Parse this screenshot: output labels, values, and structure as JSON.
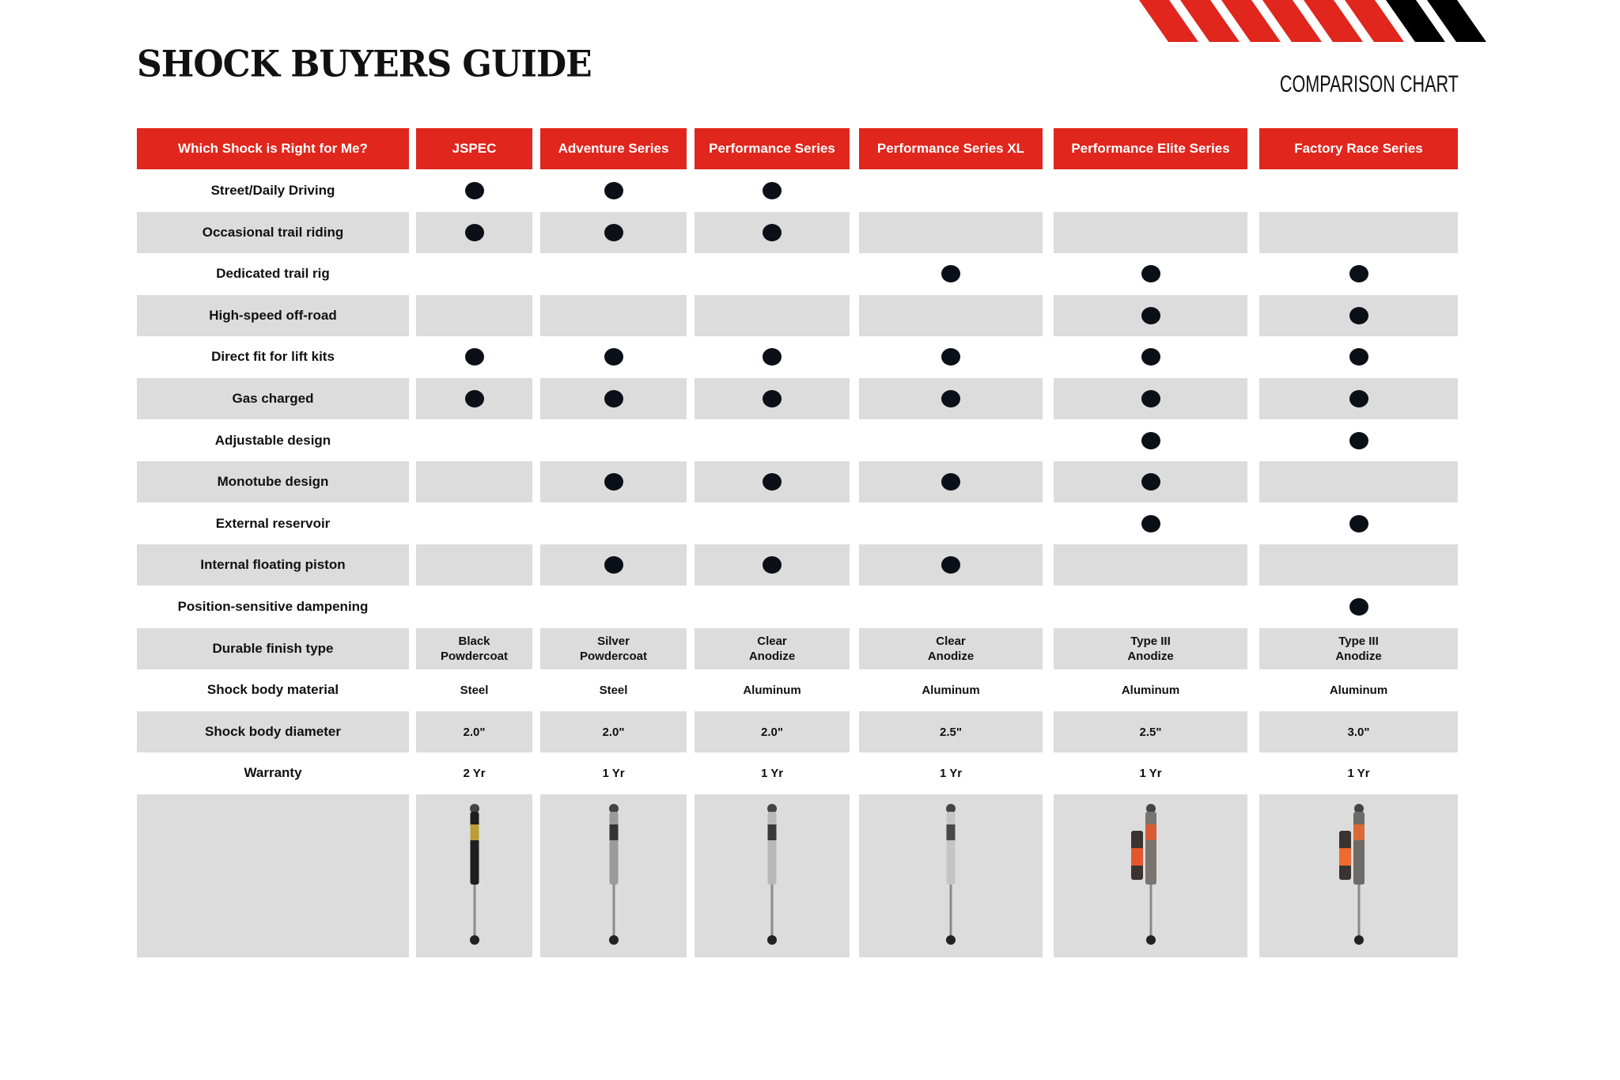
{
  "header": {
    "title": "SHOCK BUYERS GUIDE",
    "subtitle": "COMPARISON CHART",
    "accent_color": "#e0261d",
    "stripe_colors": [
      "#e0261d",
      "#e0261d",
      "#e0261d",
      "#e0261d",
      "#e0261d",
      "#e0261d",
      "#000000",
      "#000000"
    ]
  },
  "table": {
    "corner_label": "Which Shock is Right for Me?",
    "products": [
      "JSPEC",
      "Adventure Series",
      "Performance Series",
      "Performance Series XL",
      "Performance Elite Series",
      "Factory Race Series"
    ],
    "rows": [
      {
        "label": "Street/Daily Driving",
        "type": "dots",
        "values": [
          true,
          true,
          true,
          false,
          false,
          false
        ]
      },
      {
        "label": "Occasional trail riding",
        "type": "dots",
        "values": [
          true,
          true,
          true,
          false,
          false,
          false
        ]
      },
      {
        "label": "Dedicated trail rig",
        "type": "dots",
        "values": [
          false,
          false,
          false,
          true,
          true,
          true
        ]
      },
      {
        "label": "High-speed off-road",
        "type": "dots",
        "values": [
          false,
          false,
          false,
          false,
          true,
          true
        ]
      },
      {
        "label": "Direct fit for lift kits",
        "type": "dots",
        "values": [
          true,
          true,
          true,
          true,
          true,
          true
        ]
      },
      {
        "label": "Gas charged",
        "type": "dots",
        "values": [
          true,
          true,
          true,
          true,
          true,
          true
        ]
      },
      {
        "label": "Adjustable design",
        "type": "dots",
        "values": [
          false,
          false,
          false,
          false,
          true,
          true
        ]
      },
      {
        "label": "Monotube design",
        "type": "dots",
        "values": [
          false,
          true,
          true,
          true,
          true,
          false
        ]
      },
      {
        "label": "External reservoir",
        "type": "dots",
        "values": [
          false,
          false,
          false,
          false,
          true,
          true
        ]
      },
      {
        "label": "Internal floating piston",
        "type": "dots",
        "values": [
          false,
          true,
          true,
          true,
          false,
          false
        ]
      },
      {
        "label": "Position-sensitive dampening",
        "type": "dots",
        "values": [
          false,
          false,
          false,
          false,
          false,
          true
        ]
      },
      {
        "label": "Durable finish type",
        "type": "text",
        "values": [
          "Black\nPowdercoat",
          "Silver\nPowdercoat",
          "Clear\nAnodize",
          "Clear\nAnodize",
          "Type III\nAnodize",
          "Type III\nAnodize"
        ]
      },
      {
        "label": "Shock body material",
        "type": "text",
        "values": [
          "Steel",
          "Steel",
          "Aluminum",
          "Aluminum",
          "Aluminum",
          "Aluminum"
        ]
      },
      {
        "label": "Shock body diameter",
        "type": "text",
        "values": [
          "2.0\"",
          "2.0\"",
          "2.0\"",
          "2.5\"",
          "2.5\"",
          "3.0\""
        ]
      },
      {
        "label": "Warranty",
        "type": "text",
        "values": [
          "2 Yr",
          "1 Yr",
          "1 Yr",
          "1 Yr",
          "1 Yr",
          "1 Yr"
        ]
      }
    ],
    "shock_images": [
      {
        "product": "JSPEC",
        "body_color": "#1e1e1e",
        "accent_color": "#d8b43a",
        "reservoir": false
      },
      {
        "product": "Adventure Series",
        "body_color": "#9a9a9a",
        "accent_color": "#222222",
        "reservoir": false
      },
      {
        "product": "Performance Series",
        "body_color": "#b8b8b8",
        "accent_color": "#222222",
        "reservoir": false
      },
      {
        "product": "Performance Series XL",
        "body_color": "#c4c4c4",
        "accent_color": "#333333",
        "reservoir": false
      },
      {
        "product": "Performance Elite Series",
        "body_color": "#7a7470",
        "accent_color": "#e5572a",
        "reservoir": true
      },
      {
        "product": "Factory Race Series",
        "body_color": "#6e6a66",
        "accent_color": "#ee6a2e",
        "reservoir": true
      }
    ]
  }
}
